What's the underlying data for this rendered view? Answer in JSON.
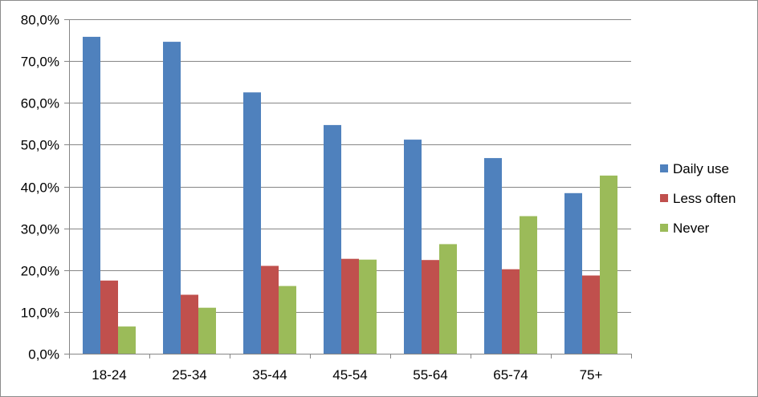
{
  "chart_data": {
    "type": "bar",
    "categories": [
      "18-24",
      "25-34",
      "35-44",
      "45-54",
      "55-64",
      "65-74",
      "75+"
    ],
    "series": [
      {
        "name": "Daily use",
        "values": [
          75.8,
          74.6,
          62.5,
          54.7,
          51.2,
          46.8,
          38.4
        ],
        "color": "#4f81bd"
      },
      {
        "name": "Less often",
        "values": [
          17.5,
          14.1,
          21.0,
          22.7,
          22.4,
          20.2,
          18.7
        ],
        "color": "#c0504d"
      },
      {
        "name": "Never",
        "values": [
          6.5,
          11.0,
          16.2,
          22.5,
          26.2,
          32.9,
          42.6
        ],
        "color": "#9bbb59"
      }
    ],
    "ylim": [
      0,
      80
    ],
    "yticks": [
      "0,0%",
      "10,0%",
      "20,0%",
      "30,0%",
      "40,0%",
      "50,0%",
      "60,0%",
      "70,0%",
      "80,0%"
    ],
    "ytick_values": [
      0,
      10,
      20,
      30,
      40,
      50,
      60,
      70,
      80
    ],
    "grid": true,
    "legend_position": "right",
    "title": "",
    "xlabel": "",
    "ylabel": ""
  }
}
